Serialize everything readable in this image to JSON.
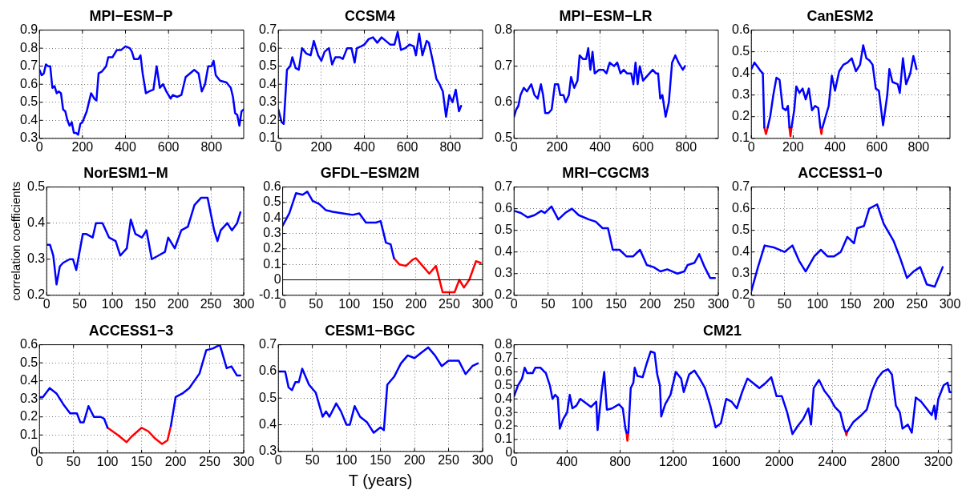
{
  "chart_data": [
    {
      "type": "line",
      "title": "MPI−ESM−P",
      "xlim": [
        0,
        950
      ],
      "xticks": [
        0,
        200,
        400,
        600,
        800
      ],
      "ylim": [
        0.3,
        0.9
      ],
      "yticks": [
        0.3,
        0.4,
        0.5,
        0.6,
        0.7,
        0.8,
        0.9
      ],
      "grid": true,
      "series": [
        {
          "color": "#0000ff",
          "x": [
            0,
            10,
            20,
            30,
            40,
            50,
            60,
            70,
            80,
            90,
            100,
            110,
            120,
            130,
            140,
            150,
            160,
            170,
            180,
            190,
            200,
            220,
            240,
            255,
            265,
            275,
            290,
            310,
            320,
            340,
            360,
            380,
            400,
            420,
            430,
            440,
            460,
            470,
            480,
            495,
            510,
            530,
            545,
            560,
            575,
            590,
            610,
            620,
            640,
            660,
            680,
            700,
            720,
            740,
            755,
            770,
            785,
            800,
            810,
            820,
            840,
            870,
            890,
            900,
            910,
            920,
            930,
            940,
            950
          ],
          "values": [
            0.68,
            0.65,
            0.66,
            0.71,
            0.7,
            0.7,
            0.58,
            0.59,
            0.55,
            0.56,
            0.55,
            0.46,
            0.45,
            0.4,
            0.37,
            0.39,
            0.33,
            0.33,
            0.32,
            0.38,
            0.39,
            0.45,
            0.55,
            0.52,
            0.51,
            0.66,
            0.67,
            0.7,
            0.75,
            0.75,
            0.79,
            0.79,
            0.81,
            0.8,
            0.78,
            0.74,
            0.74,
            0.76,
            0.66,
            0.55,
            0.56,
            0.57,
            0.7,
            0.58,
            0.6,
            0.56,
            0.52,
            0.54,
            0.53,
            0.54,
            0.64,
            0.66,
            0.68,
            0.66,
            0.56,
            0.6,
            0.7,
            0.7,
            0.73,
            0.65,
            0.62,
            0.61,
            0.58,
            0.53,
            0.44,
            0.43,
            0.37,
            0.45,
            0.46
          ]
        }
      ]
    },
    {
      "type": "line",
      "title": "CCSM4",
      "xlim": [
        0,
        950
      ],
      "xticks": [
        0,
        200,
        400,
        600,
        800
      ],
      "ylim": [
        0.1,
        0.7
      ],
      "yticks": [
        0.1,
        0.2,
        0.3,
        0.4,
        0.5,
        0.6,
        0.7
      ],
      "grid": true,
      "series": [
        {
          "color": "#0000ff",
          "x": [
            0,
            15,
            25,
            40,
            55,
            65,
            80,
            95,
            110,
            130,
            150,
            165,
            185,
            200,
            215,
            235,
            250,
            265,
            285,
            300,
            320,
            340,
            355,
            365,
            385,
            400,
            420,
            440,
            460,
            480,
            500,
            520,
            540,
            555,
            570,
            590,
            610,
            630,
            640,
            655,
            670,
            690,
            700,
            720,
            735,
            750,
            765,
            780,
            795,
            810,
            825,
            840,
            850
          ],
          "values": [
            0.26,
            0.19,
            0.18,
            0.48,
            0.5,
            0.55,
            0.49,
            0.48,
            0.6,
            0.57,
            0.56,
            0.64,
            0.56,
            0.53,
            0.58,
            0.6,
            0.51,
            0.55,
            0.55,
            0.54,
            0.6,
            0.6,
            0.52,
            0.6,
            0.61,
            0.62,
            0.65,
            0.66,
            0.63,
            0.66,
            0.64,
            0.62,
            0.62,
            0.69,
            0.59,
            0.6,
            0.62,
            0.61,
            0.56,
            0.68,
            0.56,
            0.64,
            0.63,
            0.52,
            0.43,
            0.4,
            0.36,
            0.22,
            0.34,
            0.3,
            0.37,
            0.25,
            0.28
          ]
        }
      ]
    },
    {
      "type": "line",
      "title": "MPI−ESM−LR",
      "xlim": [
        0,
        950
      ],
      "xticks": [
        0,
        200,
        400,
        600,
        800
      ],
      "ylim": [
        0.5,
        0.8
      ],
      "yticks": [
        0.5,
        0.6,
        0.7,
        0.8
      ],
      "grid": true,
      "series": [
        {
          "color": "#0000ff",
          "x": [
            0,
            10,
            20,
            30,
            45,
            60,
            70,
            80,
            95,
            110,
            125,
            135,
            145,
            160,
            175,
            190,
            205,
            215,
            230,
            240,
            255,
            265,
            280,
            295,
            305,
            320,
            335,
            345,
            355,
            365,
            375,
            395,
            415,
            430,
            445,
            465,
            480,
            495,
            510,
            525,
            545,
            555,
            565,
            575,
            585,
            600,
            615,
            630,
            645,
            660,
            670,
            680,
            690,
            705,
            720,
            735,
            750,
            765,
            785,
            795
          ],
          "values": [
            0.56,
            0.58,
            0.59,
            0.62,
            0.64,
            0.63,
            0.64,
            0.65,
            0.62,
            0.61,
            0.65,
            0.62,
            0.57,
            0.57,
            0.58,
            0.65,
            0.65,
            0.62,
            0.62,
            0.6,
            0.62,
            0.67,
            0.64,
            0.66,
            0.73,
            0.72,
            0.72,
            0.75,
            0.69,
            0.74,
            0.68,
            0.69,
            0.69,
            0.68,
            0.71,
            0.7,
            0.71,
            0.68,
            0.69,
            0.68,
            0.68,
            0.65,
            0.71,
            0.65,
            0.7,
            0.66,
            0.67,
            0.68,
            0.69,
            0.68,
            0.68,
            0.61,
            0.62,
            0.56,
            0.6,
            0.71,
            0.73,
            0.71,
            0.69,
            0.7
          ]
        }
      ]
    },
    {
      "type": "line",
      "title": "CanESM2",
      "xlim": [
        0,
        950
      ],
      "xticks": [
        0,
        200,
        400,
        600,
        800
      ],
      "ylim": [
        0.1,
        0.6
      ],
      "yticks": [
        0.1,
        0.2,
        0.3,
        0.4,
        0.5,
        0.6
      ],
      "grid": true,
      "series": [
        {
          "color": "#0000ff",
          "x": [
            0,
            15,
            30,
            45,
            55,
            62,
            70,
            78,
            90,
            105,
            120,
            135,
            150,
            165,
            175,
            182,
            187,
            192,
            205,
            215,
            230,
            245,
            260,
            275,
            290,
            305,
            320,
            330,
            335,
            340,
            355,
            370,
            385,
            400,
            420,
            440,
            460,
            480,
            500,
            520,
            535,
            550,
            565,
            580,
            595,
            610,
            630,
            650,
            660,
            675,
            700,
            710,
            725,
            740,
            760,
            775,
            790
          ],
          "values": [
            0.42,
            0.45,
            0.43,
            0.41,
            0.4,
            0.15,
            null,
            0.15,
            0.2,
            0.3,
            0.38,
            0.37,
            0.24,
            0.23,
            0.25,
            0.15,
            null,
            0.15,
            0.23,
            0.34,
            0.31,
            0.33,
            0.28,
            0.33,
            0.23,
            0.25,
            0.24,
            0.15,
            null,
            0.15,
            0.2,
            0.25,
            0.39,
            0.32,
            0.41,
            0.44,
            0.45,
            0.47,
            0.41,
            0.44,
            0.53,
            0.47,
            0.46,
            0.44,
            0.33,
            0.32,
            0.16,
            0.3,
            0.42,
            0.36,
            0.35,
            0.31,
            0.47,
            0.35,
            0.4,
            0.48,
            0.42
          ]
        },
        {
          "color": "#ff0000",
          "x": [
            62,
            70,
            78
          ],
          "values": [
            0.15,
            0.12,
            0.15
          ]
        },
        {
          "color": "#ff0000",
          "x": [
            182,
            187,
            192
          ],
          "values": [
            0.15,
            0.11,
            0.15
          ]
        },
        {
          "color": "#ff0000",
          "x": [
            330,
            335,
            340
          ],
          "values": [
            0.15,
            0.12,
            0.15
          ]
        }
      ]
    },
    {
      "type": "line",
      "title": "NorESM1−M",
      "ylabel": "correlation coefficients",
      "xlim": [
        0,
        300
      ],
      "xticks": [
        0,
        50,
        100,
        150,
        200,
        250,
        300
      ],
      "ylim": [
        0.2,
        0.5
      ],
      "yticks": [
        0.2,
        0.3,
        0.4,
        0.5
      ],
      "grid": true,
      "series": [
        {
          "color": "#0000ff",
          "x": [
            0,
            5,
            10,
            15,
            20,
            25,
            35,
            40,
            45,
            55,
            60,
            70,
            75,
            85,
            95,
            105,
            112,
            122,
            128,
            135,
            145,
            152,
            160,
            170,
            180,
            185,
            195,
            205,
            215,
            225,
            235,
            245,
            255,
            260,
            265,
            275,
            282,
            290,
            295
          ],
          "values": [
            0.34,
            0.34,
            0.31,
            0.23,
            0.28,
            0.29,
            0.3,
            0.3,
            0.27,
            0.37,
            0.37,
            0.36,
            0.4,
            0.4,
            0.36,
            0.35,
            0.31,
            0.33,
            0.41,
            0.37,
            0.36,
            0.38,
            0.3,
            0.31,
            0.32,
            0.36,
            0.33,
            0.38,
            0.39,
            0.45,
            0.47,
            0.47,
            0.38,
            0.35,
            0.38,
            0.4,
            0.38,
            0.4,
            0.43
          ]
        }
      ]
    },
    {
      "type": "line",
      "title": "GFDL−ESM2M",
      "xlim": [
        0,
        300
      ],
      "xticks": [
        0,
        50,
        100,
        150,
        200,
        250,
        300
      ],
      "ylim": [
        -0.1,
        0.6
      ],
      "yticks": [
        -0.1,
        0,
        0.1,
        0.2,
        0.3,
        0.4,
        0.5,
        0.6
      ],
      "grid": true,
      "ref_lines": [
        {
          "axis": "y",
          "value": 0,
          "color": "#000000"
        }
      ],
      "series": [
        {
          "color": "#0000ff",
          "x": [
            0,
            10,
            20,
            30,
            37,
            45,
            55,
            65,
            75,
            90,
            105,
            115,
            125,
            140,
            147,
            155,
            162,
            167
          ],
          "values": [
            0.35,
            0.43,
            0.56,
            0.55,
            0.57,
            0.51,
            0.49,
            0.45,
            0.44,
            0.43,
            0.42,
            0.43,
            0.37,
            0.37,
            0.38,
            0.24,
            0.23,
            0.14
          ]
        },
        {
          "color": "#ff0000",
          "x": [
            167,
            175,
            185,
            195,
            200,
            210,
            220,
            230,
            240,
            250,
            258,
            265,
            272,
            280,
            290,
            297
          ],
          "values": [
            0.14,
            0.1,
            0.09,
            0.13,
            0.14,
            0.09,
            0.04,
            0.09,
            -0.08,
            -0.08,
            -0.08,
            0.0,
            -0.05,
            0.0,
            0.12,
            0.11
          ]
        }
      ]
    },
    {
      "type": "line",
      "title": "MRI−CGCM3",
      "xlim": [
        0,
        300
      ],
      "xticks": [
        0,
        50,
        100,
        150,
        200,
        250,
        300
      ],
      "ylim": [
        0.2,
        0.7
      ],
      "yticks": [
        0.2,
        0.3,
        0.4,
        0.5,
        0.6,
        0.7
      ],
      "grid": true,
      "series": [
        {
          "color": "#0000ff",
          "x": [
            0,
            10,
            20,
            30,
            40,
            45,
            55,
            65,
            75,
            85,
            95,
            110,
            120,
            130,
            138,
            145,
            155,
            165,
            175,
            185,
            195,
            205,
            215,
            225,
            240,
            250,
            255,
            265,
            272,
            280,
            288,
            295
          ],
          "values": [
            0.59,
            0.58,
            0.56,
            0.57,
            0.59,
            0.58,
            0.61,
            0.55,
            0.58,
            0.6,
            0.57,
            0.55,
            0.54,
            0.51,
            0.51,
            0.41,
            0.41,
            0.38,
            0.38,
            0.41,
            0.34,
            0.33,
            0.31,
            0.32,
            0.3,
            0.31,
            0.34,
            0.35,
            0.39,
            0.33,
            0.28,
            0.28
          ]
        }
      ]
    },
    {
      "type": "line",
      "title": "ACCESS1−0",
      "xlim": [
        0,
        300
      ],
      "xticks": [
        0,
        50,
        100,
        150,
        200,
        250,
        300
      ],
      "ylim": [
        0.2,
        0.7
      ],
      "yticks": [
        0.2,
        0.3,
        0.4,
        0.5,
        0.6,
        0.7
      ],
      "grid": true,
      "series": [
        {
          "color": "#0000ff",
          "x": [
            0,
            10,
            20,
            35,
            50,
            62,
            72,
            82,
            95,
            105,
            115,
            125,
            135,
            145,
            155,
            160,
            170,
            178,
            190,
            200,
            215,
            225,
            235,
            245,
            255,
            265,
            277,
            289
          ],
          "values": [
            0.22,
            0.33,
            0.43,
            0.42,
            0.4,
            0.43,
            0.36,
            0.31,
            0.38,
            0.41,
            0.38,
            0.38,
            0.4,
            0.47,
            0.44,
            0.51,
            0.52,
            0.6,
            0.62,
            0.53,
            0.45,
            0.37,
            0.28,
            0.31,
            0.33,
            0.25,
            0.24,
            0.33
          ]
        }
      ]
    },
    {
      "type": "line",
      "title": "ACCESS1−3",
      "xlim": [
        0,
        300
      ],
      "xticks": [
        0,
        50,
        100,
        150,
        200,
        250,
        300
      ],
      "ylim": [
        0,
        0.6
      ],
      "yticks": [
        0,
        0.1,
        0.2,
        0.3,
        0.4,
        0.5,
        0.6
      ],
      "grid": true,
      "series": [
        {
          "color": "#0000ff",
          "x": [
            0,
            5,
            15,
            25,
            35,
            45,
            55,
            60,
            65,
            72,
            80,
            90,
            95,
            100,
            140,
            193,
            200,
            210,
            220,
            235,
            245,
            255,
            265,
            275,
            282,
            290,
            295
          ],
          "values": [
            0.31,
            0.31,
            0.36,
            0.33,
            0.27,
            0.22,
            0.22,
            0.17,
            0.17,
            0.26,
            0.2,
            0.2,
            0.19,
            0.14,
            null,
            0.15,
            0.31,
            0.33,
            0.36,
            0.44,
            0.57,
            0.58,
            0.6,
            0.47,
            0.48,
            0.43,
            0.43
          ]
        },
        {
          "color": "#ff0000",
          "x": [
            100,
            115,
            128,
            135,
            150,
            160,
            170,
            180,
            188,
            193
          ],
          "values": [
            0.14,
            0.1,
            0.06,
            0.09,
            0.14,
            0.12,
            0.08,
            0.05,
            0.07,
            0.15
          ]
        }
      ]
    },
    {
      "type": "line",
      "title": "CESM1−BGC",
      "xlabel": "T (years)",
      "xlim": [
        0,
        300
      ],
      "xticks": [
        0,
        50,
        100,
        150,
        200,
        250,
        300
      ],
      "ylim": [
        0.3,
        0.7
      ],
      "yticks": [
        0.3,
        0.4,
        0.5,
        0.6,
        0.7
      ],
      "grid": true,
      "series": [
        {
          "color": "#0000ff",
          "x": [
            0,
            10,
            15,
            20,
            25,
            30,
            35,
            45,
            55,
            65,
            70,
            75,
            85,
            92,
            100,
            105,
            112,
            120,
            130,
            140,
            150,
            155,
            160,
            170,
            180,
            190,
            200,
            210,
            220,
            230,
            240,
            250,
            265,
            275,
            285,
            293
          ],
          "values": [
            0.6,
            0.6,
            0.54,
            0.53,
            0.56,
            0.56,
            0.61,
            0.55,
            0.52,
            0.43,
            0.45,
            0.43,
            0.48,
            0.45,
            0.4,
            0.4,
            0.47,
            0.43,
            0.41,
            0.37,
            0.39,
            0.38,
            0.55,
            0.58,
            0.63,
            0.66,
            0.65,
            0.67,
            0.69,
            0.66,
            0.62,
            0.64,
            0.64,
            0.59,
            0.62,
            0.63
          ]
        }
      ]
    },
    {
      "type": "line",
      "title": "CM21",
      "xlim": [
        0,
        3300
      ],
      "xticks": [
        0,
        400,
        800,
        1200,
        1600,
        2000,
        2400,
        2800,
        3200
      ],
      "ylim": [
        0,
        0.8
      ],
      "yticks": [
        0,
        0.1,
        0.2,
        0.3,
        0.4,
        0.5,
        0.6,
        0.7,
        0.8
      ],
      "grid": true,
      "series": [
        {
          "color": "#0000ff",
          "x": [
            0,
            30,
            60,
            80,
            100,
            140,
            160,
            200,
            240,
            270,
            290,
            310,
            330,
            345,
            370,
            400,
            420,
            440,
            470,
            500,
            540,
            580,
            620,
            630,
            660,
            680,
            700,
            740,
            790,
            820,
            840,
            848,
            855,
            862,
            880,
            900,
            910,
            930,
            970,
            1000,
            1030,
            1060,
            1080,
            1100,
            1110,
            1140,
            1180,
            1220,
            1260,
            1280,
            1320,
            1360,
            1400,
            1440,
            1480,
            1520,
            1560,
            1600,
            1640,
            1680,
            1720,
            1760,
            1800,
            1850,
            1900,
            1940,
            1980,
            2020,
            2060,
            2100,
            2140,
            2180,
            2220,
            2240,
            2260,
            2300,
            2340,
            2380,
            2420,
            2460,
            2490,
            2500,
            2507,
            2514,
            2560,
            2620,
            2660,
            2700,
            2740,
            2780,
            2820,
            2850,
            2880,
            2910,
            2930,
            2970,
            3000,
            3030,
            3070,
            3110,
            3150,
            3170,
            3180,
            3200,
            3240,
            3270,
            3285,
            3295
          ],
          "values": [
            0.42,
            0.5,
            0.55,
            0.63,
            0.59,
            0.59,
            0.63,
            0.63,
            0.59,
            0.5,
            0.4,
            0.43,
            0.41,
            0.18,
            0.25,
            0.3,
            0.43,
            0.33,
            0.35,
            0.4,
            0.37,
            0.34,
            0.38,
            0.17,
            0.45,
            0.6,
            0.32,
            0.33,
            0.36,
            0.33,
            0.18,
            0.15,
            null,
            0.15,
            0.48,
            0.52,
            0.63,
            0.57,
            0.56,
            0.66,
            0.75,
            0.74,
            0.58,
            0.5,
            0.27,
            0.36,
            0.43,
            0.6,
            0.55,
            0.45,
            0.58,
            0.61,
            0.55,
            0.48,
            0.35,
            0.19,
            0.22,
            0.4,
            0.38,
            0.33,
            0.45,
            0.55,
            0.52,
            0.48,
            0.52,
            0.56,
            0.42,
            0.42,
            0.3,
            0.14,
            0.2,
            0.25,
            0.33,
            0.21,
            0.48,
            0.54,
            0.46,
            0.41,
            0.34,
            0.3,
            0.18,
            0.16,
            null,
            0.16,
            0.23,
            0.28,
            0.32,
            0.46,
            0.55,
            0.6,
            0.62,
            0.58,
            0.35,
            0.3,
            0.18,
            0.21,
            0.15,
            0.41,
            0.38,
            0.33,
            0.28,
            0.35,
            0.25,
            0.4,
            0.5,
            0.52,
            0.45,
            0.45
          ]
        },
        {
          "color": "#ff0000",
          "x": [
            848,
            855,
            862
          ],
          "values": [
            0.15,
            0.09,
            0.15
          ]
        },
        {
          "color": "#ff0000",
          "x": [
            2500,
            2507,
            2514
          ],
          "values": [
            0.16,
            0.13,
            0.16
          ]
        }
      ]
    }
  ]
}
